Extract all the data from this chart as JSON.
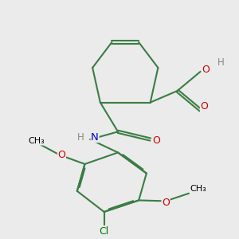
{
  "background_color": "#ebebeb",
  "bond_color": "#3a7d44",
  "bond_width": 1.5,
  "atom_colors": {
    "O": "#cc0000",
    "N": "#0000cc",
    "Cl": "#007700",
    "H": "#888888"
  },
  "font_size": 8.5
}
